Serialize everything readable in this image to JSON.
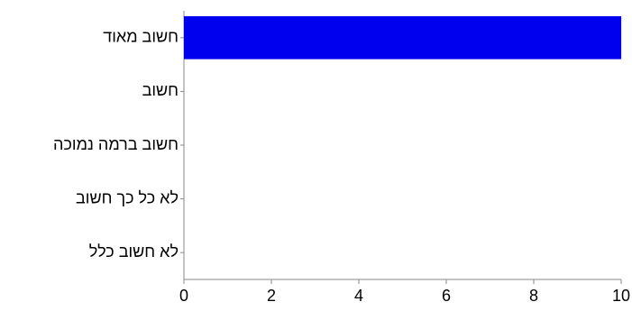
{
  "chart_data": {
    "type": "bar",
    "orientation": "horizontal",
    "categories": [
      "חשוב מאוד",
      "חשוב",
      "חשוב ברמה נמוכה",
      "לא כל כך חשוב",
      "לא חשוב כלל"
    ],
    "values": [
      10,
      0,
      0,
      0,
      0
    ],
    "xlim": [
      0,
      10
    ],
    "xticks": [
      0,
      2,
      4,
      6,
      8,
      10
    ],
    "title": "",
    "xlabel": "",
    "ylabel": "",
    "grid": false,
    "bar_color": "#0000ee"
  }
}
